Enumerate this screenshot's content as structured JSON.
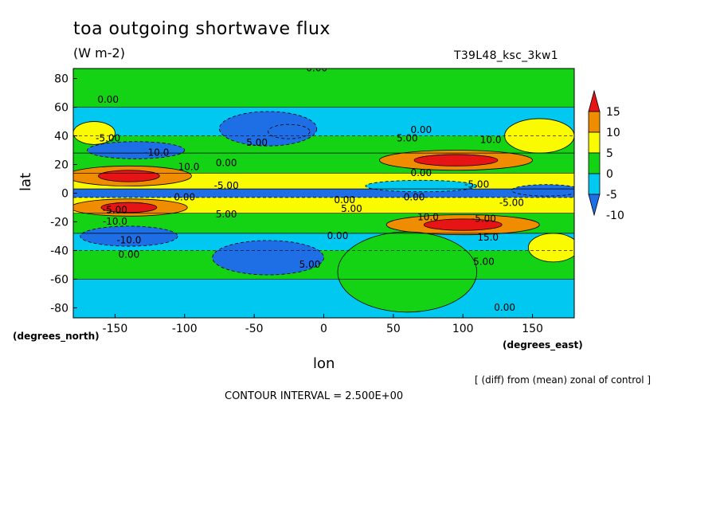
{
  "chart_data": {
    "type": "heatmap",
    "title": "toa outgoing shortwave flux",
    "subtitle": "(W m-2)",
    "experiment_label": "T39L48_ksc_3kw1",
    "xlabel": "lon",
    "ylabel": "lat",
    "x_unit_label": "(degrees_east)",
    "y_unit_label": "(degrees_north)",
    "xlim": [
      -180,
      180
    ],
    "ylim": [
      -87,
      87
    ],
    "x_ticks": [
      "-150",
      "-100",
      "-50",
      "0",
      "50",
      "100",
      "150"
    ],
    "x_tick_values": [
      -150,
      -100,
      -50,
      0,
      50,
      100,
      150
    ],
    "y_ticks": [
      "80",
      "60",
      "40",
      "20",
      "0",
      "-20",
      "-40",
      "-60",
      "-80"
    ],
    "y_tick_values": [
      80,
      60,
      40,
      20,
      0,
      -20,
      -40,
      -60,
      -80
    ],
    "colorbar": {
      "labels": [
        "15",
        "10",
        "5",
        "0",
        "-5",
        "-10"
      ],
      "levels": [
        15,
        10,
        5,
        0,
        -5,
        -10
      ],
      "colors": [
        "#1e6ee6",
        "#00c8f0",
        "#14d214",
        "#fafa00",
        "#f08c00",
        "#e61414"
      ]
    },
    "colorbar_bins": [
      {
        "min": null,
        "max": -10,
        "color": "#1e6ee6"
      },
      {
        "min": -10,
        "max": -5,
        "color": "#1e6ee6"
      },
      {
        "min": -5,
        "max": 0,
        "color": "#00c8f0"
      },
      {
        "min": 0,
        "max": 5,
        "color": "#14d214"
      },
      {
        "min": 5,
        "max": 10,
        "color": "#fafa00"
      },
      {
        "min": 10,
        "max": 15,
        "color": "#f08c00"
      },
      {
        "min": 15,
        "max": null,
        "color": "#e61414"
      }
    ],
    "lat_bands": [
      {
        "lat": [
          60,
          87
        ],
        "lon": [
          -180,
          180
        ],
        "value": 2
      },
      {
        "lat": [
          40,
          60
        ],
        "lon": [
          -180,
          180
        ],
        "value": -3
      },
      {
        "lat": [
          28,
          40
        ],
        "lon": [
          -180,
          180
        ],
        "value": 2
      },
      {
        "lat": [
          14,
          28
        ],
        "lon": [
          -180,
          180
        ],
        "value": 4
      },
      {
        "lat": [
          3,
          14
        ],
        "lon": [
          -180,
          180
        ],
        "value": 6
      },
      {
        "lat": [
          -3,
          3
        ],
        "lon": [
          -180,
          180
        ],
        "value": -6
      },
      {
        "lat": [
          -14,
          -3
        ],
        "lon": [
          -180,
          180
        ],
        "value": 6
      },
      {
        "lat": [
          -28,
          -14
        ],
        "lon": [
          -180,
          180
        ],
        "value": 3
      },
      {
        "lat": [
          -40,
          -28
        ],
        "lon": [
          -180,
          180
        ],
        "value": -4
      },
      {
        "lat": [
          -60,
          -40
        ],
        "lon": [
          -180,
          180
        ],
        "value": 2
      },
      {
        "lat": [
          -87,
          -60
        ],
        "lon": [
          -180,
          180
        ],
        "value": -2
      }
    ],
    "features": [
      {
        "lon": -140,
        "lat": 12,
        "rlon": 45,
        "rlat": 7,
        "value": 11
      },
      {
        "lon": -140,
        "lat": 12,
        "rlon": 22,
        "rlat": 4,
        "value": 16
      },
      {
        "lon": -140,
        "lat": -10,
        "rlon": 42,
        "rlat": 6,
        "value": 11
      },
      {
        "lon": -140,
        "lat": -10,
        "rlon": 20,
        "rlat": 3.5,
        "value": 16
      },
      {
        "lon": 95,
        "lat": 23,
        "rlon": 55,
        "rlat": 7,
        "value": 11
      },
      {
        "lon": 95,
        "lat": 23,
        "rlon": 30,
        "rlat": 4,
        "value": 16
      },
      {
        "lon": 100,
        "lat": -22,
        "rlon": 55,
        "rlat": 7,
        "value": 11
      },
      {
        "lon": 100,
        "lat": -22,
        "rlon": 28,
        "rlat": 4,
        "value": 16
      },
      {
        "lon": -135,
        "lat": 30,
        "rlon": 35,
        "rlat": 6,
        "value": -11
      },
      {
        "lon": -140,
        "lat": -30,
        "rlon": 35,
        "rlat": 7,
        "value": -11
      },
      {
        "lon": -40,
        "lat": 45,
        "rlon": 35,
        "rlat": 12,
        "value": -7
      },
      {
        "lon": -25,
        "lat": 43,
        "rlon": 15,
        "rlat": 5,
        "value": -11
      },
      {
        "lon": -40,
        "lat": -45,
        "rlon": 40,
        "rlat": 12,
        "value": -7
      },
      {
        "lon": 60,
        "lat": -55,
        "rlon": 50,
        "rlat": 28,
        "value": 2
      },
      {
        "lon": 155,
        "lat": 40,
        "rlon": 25,
        "rlat": 12,
        "value": 7
      },
      {
        "lon": 165,
        "lat": -38,
        "rlon": 18,
        "rlat": 10,
        "value": 7
      },
      {
        "lon": -165,
        "lat": 42,
        "rlon": 15,
        "rlat": 8,
        "value": 6
      },
      {
        "lon": 160,
        "lat": 2,
        "rlon": 25,
        "rlat": 4,
        "value": -11
      },
      {
        "lon": 70,
        "lat": 5,
        "rlon": 40,
        "rlat": 4,
        "value": -2
      }
    ],
    "contour_labels": [
      {
        "text": "0.00",
        "lon": -155,
        "lat": 63
      },
      {
        "text": "0.00",
        "lon": -5,
        "lat": 85
      },
      {
        "text": "-5.00",
        "lon": -155,
        "lat": 36
      },
      {
        "text": "-10.0",
        "lon": -120,
        "lat": 26
      },
      {
        "text": "5.00",
        "lon": -48,
        "lat": 33
      },
      {
        "text": "10.0",
        "lon": -97,
        "lat": 16
      },
      {
        "text": "0.00",
        "lon": -70,
        "lat": 19
      },
      {
        "text": "-5.00",
        "lon": -70,
        "lat": 3
      },
      {
        "text": "0.00",
        "lon": -100,
        "lat": -5
      },
      {
        "text": "5.00",
        "lon": -70,
        "lat": -17
      },
      {
        "text": "-5.00",
        "lon": -150,
        "lat": -14
      },
      {
        "text": "-10.0",
        "lon": -150,
        "lat": -22
      },
      {
        "text": "-10.0",
        "lon": -140,
        "lat": -35
      },
      {
        "text": "0.00",
        "lon": -140,
        "lat": -45
      },
      {
        "text": "5.00",
        "lon": -10,
        "lat": -52
      },
      {
        "text": "0.00",
        "lon": 10,
        "lat": -32
      },
      {
        "text": "0.00",
        "lon": 15,
        "lat": -7
      },
      {
        "text": "5.00",
        "lon": 20,
        "lat": -13
      },
      {
        "text": "5.00",
        "lon": 60,
        "lat": 36
      },
      {
        "text": "0.00",
        "lon": 70,
        "lat": 42
      },
      {
        "text": "10.0",
        "lon": 120,
        "lat": 35
      },
      {
        "text": "0.00",
        "lon": 70,
        "lat": 12
      },
      {
        "text": "0.00",
        "lon": 65,
        "lat": -5
      },
      {
        "text": "10.0",
        "lon": 75,
        "lat": -19
      },
      {
        "text": "-5.00",
        "lon": 110,
        "lat": 4
      },
      {
        "text": "-5.00",
        "lon": 135,
        "lat": -9
      },
      {
        "text": "-5.00",
        "lon": 115,
        "lat": -20
      },
      {
        "text": "15.0",
        "lon": 118,
        "lat": -33
      },
      {
        "text": "5.00",
        "lon": 115,
        "lat": -50
      },
      {
        "text": "0.00",
        "lon": 130,
        "lat": -82
      }
    ]
  },
  "footer": {
    "note": "[ (diff) from (mean) zonal of control ]",
    "contour_interval": "CONTOUR INTERVAL = 2.500E+00"
  }
}
